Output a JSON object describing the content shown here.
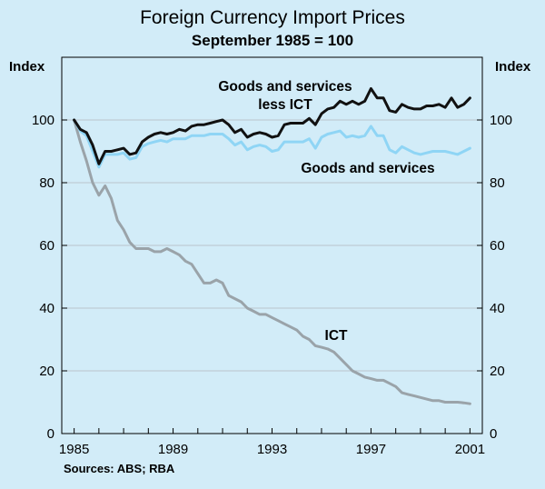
{
  "chart_data": {
    "type": "line",
    "title": "Foreign Currency Import Prices",
    "subtitle": "September 1985 = 100",
    "ylabel_left": "Index",
    "ylabel_right": "Index",
    "source": "Sources: ABS; RBA",
    "xlim": [
      1984.5,
      2001.5
    ],
    "ylim": [
      0,
      120
    ],
    "x_ticks": [
      1985,
      1989,
      1993,
      1997,
      2001
    ],
    "y_ticks": [
      0,
      20,
      40,
      60,
      80,
      100
    ],
    "annotations": {
      "goods_less_ict_line1": "Goods and services",
      "goods_less_ict_line2": "less ICT",
      "goods": "Goods and services",
      "ict": "ICT"
    },
    "series": [
      {
        "name": "Goods and services less ICT",
        "color": "#111111",
        "x": [
          1985.0,
          1985.25,
          1985.5,
          1985.75,
          1986.0,
          1986.25,
          1986.5,
          1986.75,
          1987.0,
          1987.25,
          1987.5,
          1987.75,
          1988.0,
          1988.25,
          1988.5,
          1988.75,
          1989.0,
          1989.25,
          1989.5,
          1989.75,
          1990.0,
          1990.25,
          1990.5,
          1990.75,
          1991.0,
          1991.25,
          1991.5,
          1991.75,
          1992.0,
          1992.25,
          1992.5,
          1992.75,
          1993.0,
          1993.25,
          1993.5,
          1993.75,
          1994.0,
          1994.25,
          1994.5,
          1994.75,
          1995.0,
          1995.25,
          1995.5,
          1995.75,
          1996.0,
          1996.25,
          1996.5,
          1996.75,
          1997.0,
          1997.25,
          1997.5,
          1997.75,
          1998.0,
          1998.25,
          1998.5,
          1998.75,
          1999.0,
          1999.25,
          1999.5,
          1999.75,
          2000.0,
          2000.25,
          2000.5,
          2000.75,
          2001.0
        ],
        "values": [
          100,
          97,
          96,
          92,
          86,
          90,
          90,
          90.5,
          91,
          89,
          89.5,
          93,
          94.5,
          95.5,
          96,
          95.5,
          96,
          97,
          96.5,
          98,
          98.5,
          98.5,
          99,
          99.5,
          100,
          98.5,
          96,
          97,
          94.5,
          95.5,
          96,
          95.5,
          94.5,
          95,
          98.5,
          99,
          99,
          99,
          100.5,
          98.5,
          102,
          103.5,
          104,
          106,
          105,
          106,
          105,
          106,
          110,
          107,
          107,
          103,
          102.5,
          105,
          104,
          103.5,
          103.5,
          104.5,
          104.5,
          105,
          104,
          107,
          104,
          105,
          107
        ]
      },
      {
        "name": "Goods and services",
        "color": "#8fd5f5",
        "x": [
          1985.0,
          1985.25,
          1985.5,
          1985.75,
          1986.0,
          1986.25,
          1986.5,
          1986.75,
          1987.0,
          1987.25,
          1987.5,
          1987.75,
          1988.0,
          1988.25,
          1988.5,
          1988.75,
          1989.0,
          1989.25,
          1989.5,
          1989.75,
          1990.0,
          1990.25,
          1990.5,
          1990.75,
          1991.0,
          1991.25,
          1991.5,
          1991.75,
          1992.0,
          1992.25,
          1992.5,
          1992.75,
          1993.0,
          1993.25,
          1993.5,
          1993.75,
          1994.0,
          1994.25,
          1994.5,
          1994.75,
          1995.0,
          1995.25,
          1995.5,
          1995.75,
          1996.0,
          1996.25,
          1996.5,
          1996.75,
          1997.0,
          1997.25,
          1997.5,
          1997.75,
          1998.0,
          1998.25,
          1998.5,
          1998.75,
          1999.0,
          1999.25,
          1999.5,
          1999.75,
          2000.0,
          2000.25,
          2000.5,
          2000.75,
          2001.0
        ],
        "values": [
          100,
          96.5,
          95,
          90,
          85,
          89,
          89,
          89,
          89.5,
          87.5,
          88,
          91.5,
          92.5,
          93,
          93.5,
          93,
          94,
          94,
          94,
          95,
          95,
          95,
          95.5,
          95.5,
          95.5,
          94,
          92,
          93,
          90.5,
          91.5,
          92,
          91.5,
          90,
          90.5,
          93,
          93,
          93,
          93,
          94,
          91,
          94.5,
          95.5,
          96,
          96.5,
          94.5,
          95,
          94.5,
          95,
          98,
          95,
          95,
          90.5,
          89.5,
          91.5,
          90.5,
          89.5,
          89,
          89.5,
          90,
          90,
          90,
          89.5,
          89,
          90,
          91
        ]
      },
      {
        "name": "ICT",
        "color": "#9aa3a9",
        "x": [
          1985.0,
          1985.25,
          1985.5,
          1985.75,
          1986.0,
          1986.25,
          1986.5,
          1986.75,
          1987.0,
          1987.25,
          1987.5,
          1987.75,
          1988.0,
          1988.25,
          1988.5,
          1988.75,
          1989.0,
          1989.25,
          1989.5,
          1989.75,
          1990.0,
          1990.25,
          1990.5,
          1990.75,
          1991.0,
          1991.25,
          1991.5,
          1991.75,
          1992.0,
          1992.25,
          1992.5,
          1992.75,
          1993.0,
          1993.25,
          1993.5,
          1993.75,
          1994.0,
          1994.25,
          1994.5,
          1994.75,
          1995.0,
          1995.25,
          1995.5,
          1995.75,
          1996.0,
          1996.25,
          1996.5,
          1996.75,
          1997.0,
          1997.25,
          1997.5,
          1997.75,
          1998.0,
          1998.25,
          1998.5,
          1998.75,
          1999.0,
          1999.25,
          1999.5,
          1999.75,
          2000.0,
          2000.25,
          2000.5,
          2000.75,
          2001.0
        ],
        "values": [
          100,
          93,
          87,
          80,
          76,
          79,
          75,
          68,
          65,
          61,
          59,
          59,
          59,
          58,
          58,
          59,
          58,
          57,
          55,
          54,
          51,
          48,
          48,
          49,
          48,
          44,
          43,
          42,
          40,
          39,
          38,
          38,
          37,
          36,
          35,
          34,
          33,
          31,
          30,
          28,
          27.5,
          27,
          26,
          24,
          22,
          20,
          19,
          18,
          17.5,
          17,
          17,
          16,
          15,
          13,
          12.5,
          12,
          11.5,
          11,
          10.5,
          10.5,
          10,
          10,
          10,
          9.8,
          9.5
        ]
      }
    ]
  }
}
